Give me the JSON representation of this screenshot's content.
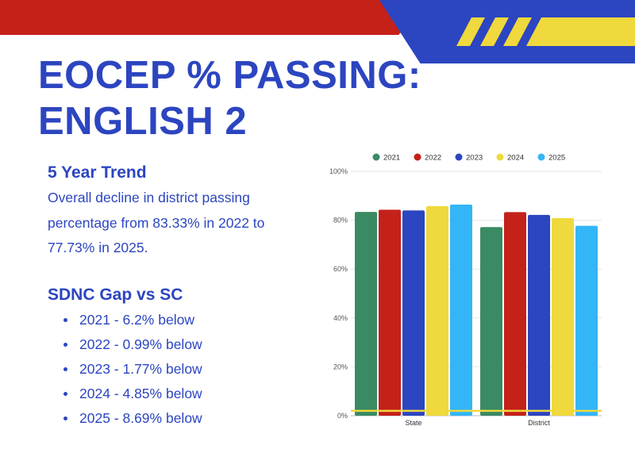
{
  "header": {
    "title_line1": "EOCEP % PASSING:",
    "title_line2": "ENGLISH 2",
    "colors": {
      "red": "#c42119",
      "blue": "#2c45c0",
      "yellow": "#f0d93c"
    }
  },
  "trend": {
    "heading": "5 Year Trend",
    "text": "Overall decline in district passing percentage from 83.33% in 2022 to 77.73% in 2025."
  },
  "gap": {
    "heading": "SDNC Gap vs SC",
    "items": [
      "2021 - 6.2% below",
      "2022 - 0.99% below",
      "2023 - 1.77% below",
      "2024 - 4.85% below",
      "2025 - 8.69% below"
    ]
  },
  "chart_data": {
    "type": "bar",
    "categories": [
      "State",
      "District"
    ],
    "series": [
      {
        "name": "2021",
        "color": "#3a8a63",
        "values": [
          83.4,
          77.2
        ]
      },
      {
        "name": "2022",
        "color": "#c42119",
        "values": [
          84.3,
          83.33
        ]
      },
      {
        "name": "2023",
        "color": "#2c45c0",
        "values": [
          84.0,
          82.2
        ]
      },
      {
        "name": "2024",
        "color": "#f0d93c",
        "values": [
          85.8,
          80.9
        ]
      },
      {
        "name": "2025",
        "color": "#33b5f8",
        "values": [
          86.4,
          77.73
        ]
      }
    ],
    "yticks": [
      "0%",
      "20%",
      "40%",
      "60%",
      "80%",
      "100%"
    ],
    "ylim": [
      0,
      100
    ],
    "reference_line": {
      "value": 2,
      "color": "#f0d93c"
    },
    "legend": "top",
    "grid": true
  }
}
